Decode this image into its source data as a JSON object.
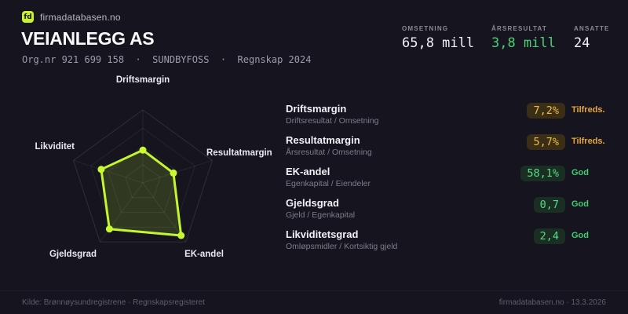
{
  "colors": {
    "background": "#16141f",
    "accent": "#c3f62e",
    "green": "#49d176",
    "amber": "#f0b43c",
    "text_primary": "#fafafa",
    "text_muted": "#8b8994"
  },
  "header": {
    "logo_text": "fd",
    "brand": "firmadatabasen.no",
    "company_name": "VEIANLEGG AS",
    "subtitle": "Org.nr 921 699 158  ·  SUNDBYFOSS  ·  Regnskap 2024"
  },
  "stats": [
    {
      "label": "OMSETNING",
      "value": "65,8 mill",
      "tone": "white"
    },
    {
      "label": "ÅRSRESULTAT",
      "value": "3,8 mill",
      "tone": "green"
    },
    {
      "label": "ANSATTE",
      "value": "24",
      "tone": "white"
    }
  ],
  "chart_data": {
    "type": "radar",
    "axes": [
      "Driftsmargin",
      "Resultatmargin",
      "EK-andel",
      "Gjeldsgrad",
      "Likviditet"
    ],
    "scores": [
      0.45,
      0.44,
      0.89,
      0.78,
      0.6
    ],
    "range": [
      0,
      1
    ],
    "rings": 4,
    "start_angle": "top",
    "direction": "clockwise",
    "stroke": "#c3f62e",
    "fill_opacity": 0.16,
    "grid": "pentagon"
  },
  "metrics": {
    "items": [
      {
        "name": "Driftsmargin",
        "formula": "Driftsresultat / Omsetning",
        "value": "7,2%",
        "status": "Tilfreds.",
        "tone": "amber"
      },
      {
        "name": "Resultatmargin",
        "formula": "Årsresultat / Omsetning",
        "value": "5,7%",
        "status": "Tilfreds.",
        "tone": "amber"
      },
      {
        "name": "EK-andel",
        "formula": "Egenkapital / Eiendeler",
        "value": "58,1%",
        "status": "God",
        "tone": "green"
      },
      {
        "name": "Gjeldsgrad",
        "formula": "Gjeld / Egenkapital",
        "value": "0,7",
        "status": "God",
        "tone": "green"
      },
      {
        "name": "Likviditetsgrad",
        "formula": "Omløpsmidler / Kortsiktig gjeld",
        "value": "2,4",
        "status": "God",
        "tone": "green"
      }
    ]
  },
  "footer": {
    "source": "Kilde: Brønnøysundregistrene · Regnskapsregisteret",
    "meta": "firmadatabasen.no · 13.3.2026"
  }
}
